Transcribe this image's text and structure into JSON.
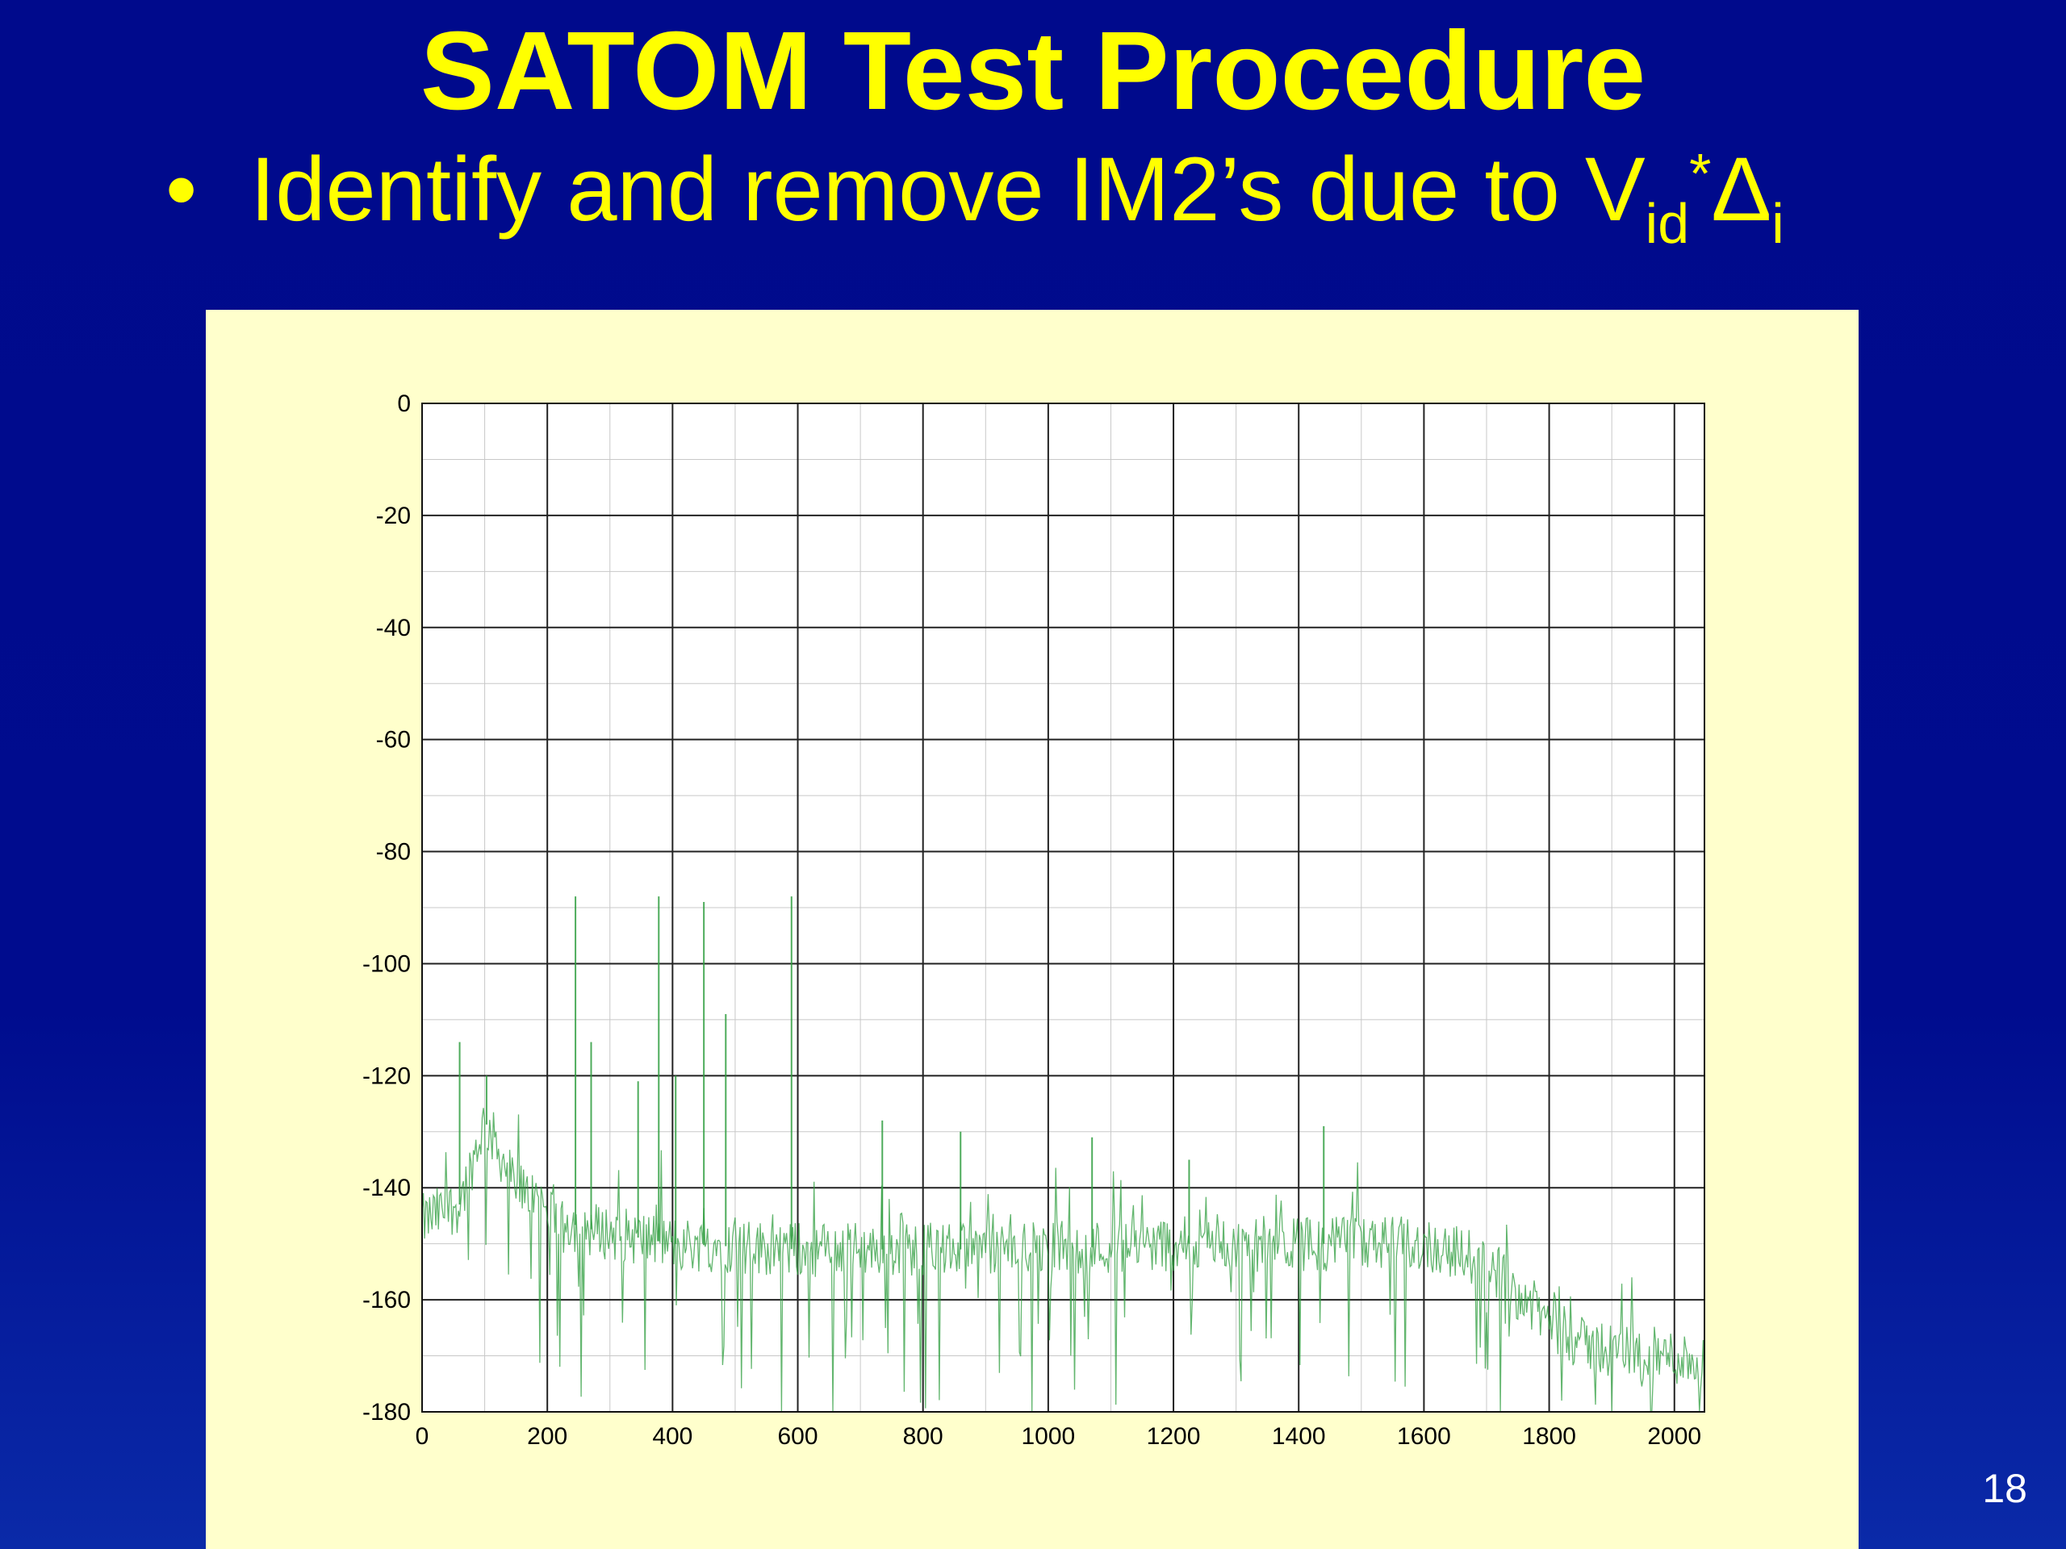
{
  "slide": {
    "title": "SATOM Test Procedure",
    "bullet": {
      "text": "Identify and remove IM2’s due to V",
      "sub1": "id",
      "sup": "*",
      "delta": "Δ",
      "sub2": "i"
    },
    "page_number": "18"
  },
  "colors": {
    "background": "#000a8c",
    "title": "#ffff00",
    "panel": "#ffffcc",
    "trace": "#2f9e3f"
  },
  "chart_data": {
    "type": "line",
    "title": "",
    "xlabel": "",
    "ylabel": "",
    "xlim": [
      0,
      2048
    ],
    "ylim": [
      -180,
      0
    ],
    "grid": true,
    "xticks": [
      0,
      200,
      400,
      600,
      800,
      1000,
      1200,
      1400,
      1600,
      1800,
      2000
    ],
    "yticks": [
      0,
      -20,
      -40,
      -60,
      -80,
      -100,
      -120,
      -140,
      -160,
      -180
    ],
    "noise_floor": {
      "x": [
        0,
        60,
        100,
        150,
        250,
        400,
        600,
        800,
        1000,
        1200,
        1400,
        1600,
        1700,
        1780,
        1850,
        2048
      ],
      "y": [
        -146,
        -143,
        -128,
        -140,
        -147,
        -150,
        -151,
        -151,
        -151,
        -150,
        -150,
        -150,
        -153,
        -162,
        -168,
        -171
      ]
    },
    "series": [
      {
        "values": [
          {
            "x": 60,
            "y": -114
          },
          {
            "x": 103,
            "y": -120
          },
          {
            "x": 245,
            "y": -88
          },
          {
            "x": 270,
            "y": -114
          },
          {
            "x": 345,
            "y": -121
          },
          {
            "x": 378,
            "y": -88
          },
          {
            "x": 405,
            "y": -120
          },
          {
            "x": 450,
            "y": -89
          },
          {
            "x": 485,
            "y": -109
          },
          {
            "x": 590,
            "y": -88
          },
          {
            "x": 735,
            "y": -128
          },
          {
            "x": 860,
            "y": -130
          },
          {
            "x": 1070,
            "y": -131
          },
          {
            "x": 1225,
            "y": -135
          },
          {
            "x": 1440,
            "y": -129
          }
        ]
      }
    ]
  }
}
